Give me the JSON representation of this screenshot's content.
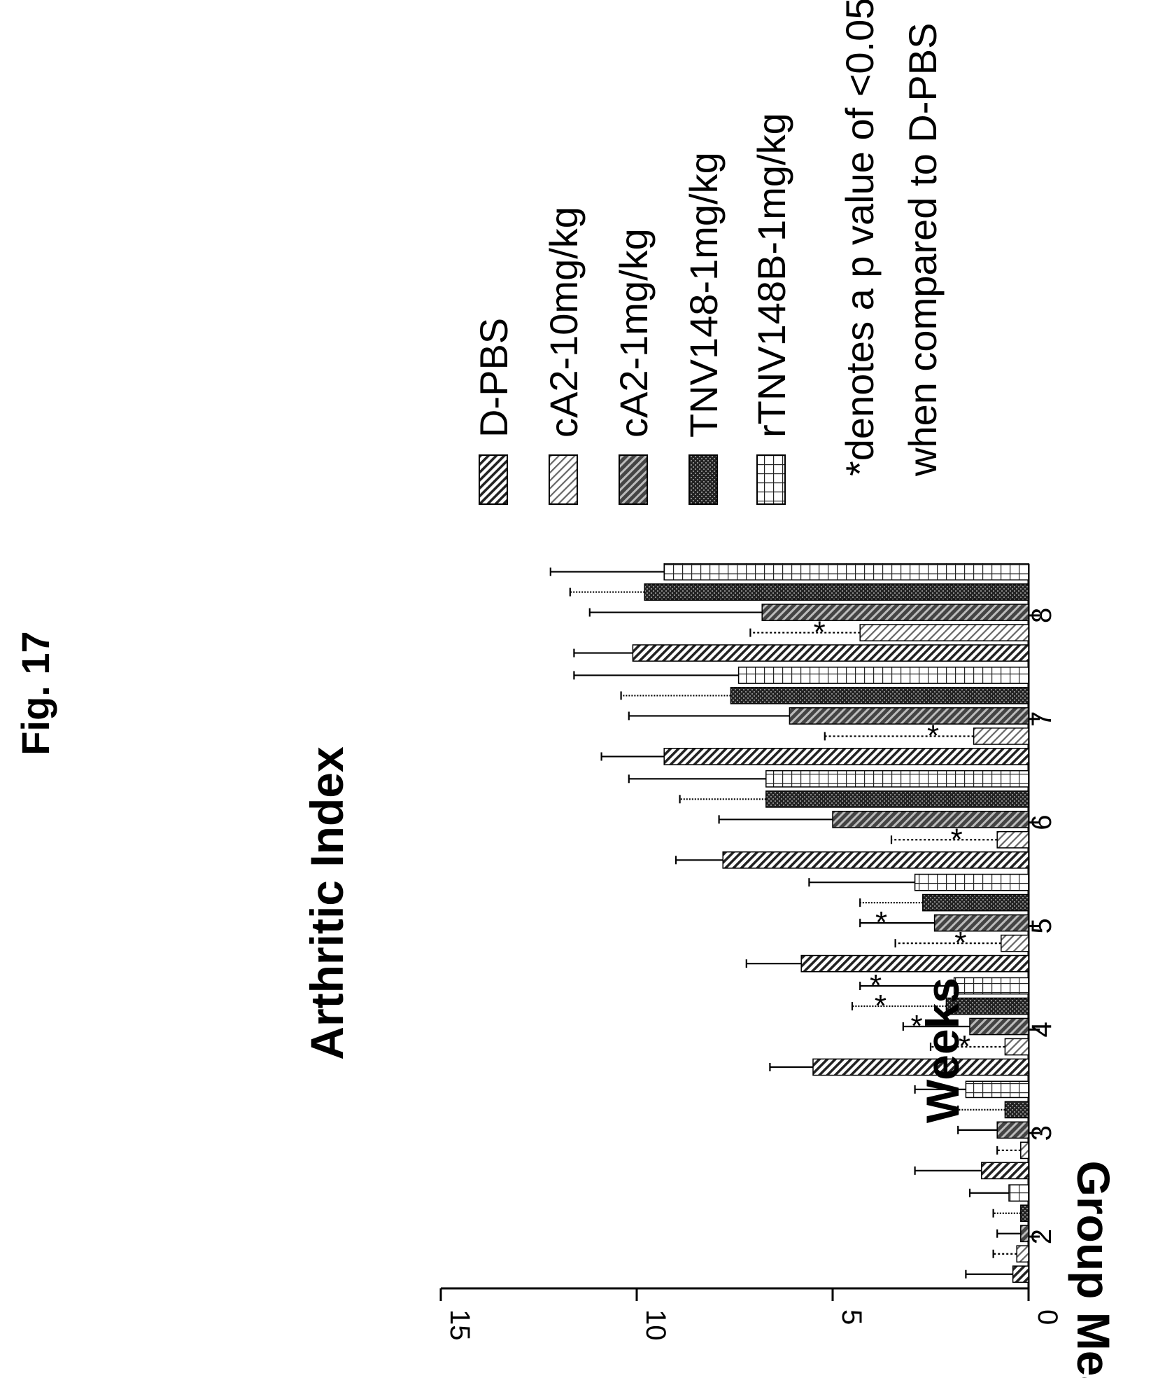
{
  "figure_label": "Fig. 17",
  "chart_data": {
    "type": "bar",
    "title": "Arthritic Index",
    "xlabel": "Weeks",
    "ylabel": "Group Mean",
    "ylim": [
      0,
      15
    ],
    "yticks": [
      "0",
      "5",
      "10",
      "15"
    ],
    "categories": [
      "2",
      "3",
      "4",
      "5",
      "6",
      "7",
      "8"
    ],
    "series": [
      {
        "name": "D-PBS",
        "values": [
          0.4,
          1.2,
          5.5,
          5.8,
          7.8,
          9.3,
          10.1
        ],
        "errors": [
          1.2,
          1.7,
          1.1,
          1.4,
          1.2,
          1.6,
          1.5
        ]
      },
      {
        "name": "cA2-10mg/kg",
        "values": [
          0.3,
          0.2,
          0.6,
          0.7,
          0.8,
          1.4,
          4.3
        ],
        "errors": [
          0.6,
          0.6,
          1.9,
          2.7,
          2.7,
          3.8,
          2.8
        ]
      },
      {
        "name": "cA2-1mg/kg",
        "values": [
          0.2,
          0.8,
          1.5,
          2.4,
          5.0,
          6.1,
          6.8
        ],
        "errors": [
          0.6,
          1.0,
          1.7,
          1.9,
          2.9,
          4.1,
          4.4
        ]
      },
      {
        "name": "TNV148-1mg/kg",
        "values": [
          0.2,
          0.6,
          2.1,
          2.7,
          6.7,
          7.6,
          9.8
        ],
        "errors": [
          0.7,
          1.2,
          2.4,
          1.6,
          2.2,
          2.8,
          1.9
        ]
      },
      {
        "name": "rTNV148B-1mg/kg",
        "values": [
          0.5,
          1.6,
          1.9,
          2.9,
          6.7,
          7.4,
          9.3
        ],
        "errors": [
          1.0,
          1.3,
          2.4,
          2.7,
          3.5,
          4.2,
          2.9
        ]
      }
    ],
    "significance": [
      {
        "category": "4",
        "series": [
          "cA2-10mg/kg",
          "cA2-1mg/kg",
          "TNV148-1mg/kg",
          "rTNV148B-1mg/kg"
        ]
      },
      {
        "category": "5",
        "series": [
          "cA2-10mg/kg",
          "cA2-1mg/kg"
        ]
      },
      {
        "category": "6",
        "series": [
          "cA2-10mg/kg"
        ]
      },
      {
        "category": "7",
        "series": [
          "cA2-10mg/kg"
        ]
      },
      {
        "category": "8",
        "series": [
          "cA2-10mg/kg"
        ]
      }
    ],
    "significance_symbol": "*",
    "footnote_line1": "*denotes a p value of <0.05",
    "footnote_line2": "when compared to D-PBS",
    "legend_position": "right",
    "grid": false
  }
}
